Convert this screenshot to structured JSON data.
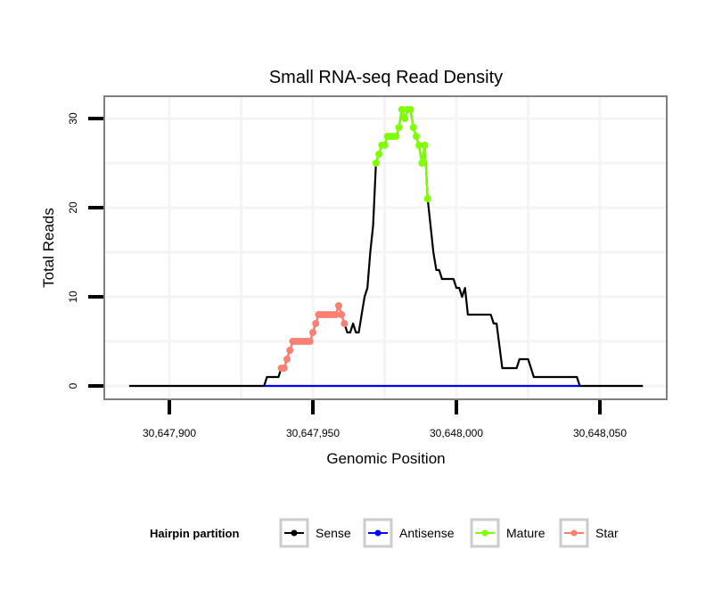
{
  "chart_data": {
    "type": "line",
    "title": "Small RNA-seq Read Density",
    "xlabel": "Genomic Position",
    "ylabel": "Total Reads",
    "xlim": [
      30647880,
      30648070
    ],
    "ylim": [
      -1.5,
      32.5
    ],
    "x_ticks": [
      30647900,
      30647950,
      30648000,
      30648050
    ],
    "x_tick_labels": [
      "30,647,900",
      "30,647,950",
      "30,648,000",
      "30,648,050"
    ],
    "y_ticks": [
      0,
      10,
      20,
      30
    ],
    "y_tick_labels": [
      "0",
      "10",
      "20",
      "30"
    ],
    "x_minor_grid": [
      30647925,
      30647975,
      30648025
    ],
    "y_minor_grid": [
      5,
      15,
      25
    ],
    "grid": true,
    "legend": {
      "title": "Hairpin partition",
      "position": "bottom",
      "entries": [
        {
          "name": "Sense",
          "color": "#000000"
        },
        {
          "name": "Antisense",
          "color": "#0000FF"
        },
        {
          "name": "Mature",
          "color": "#7FFF00"
        },
        {
          "name": "Star",
          "color": "#FA8072"
        }
      ]
    },
    "series": [
      {
        "name": "Sense",
        "color": "#000000",
        "style": "line",
        "x": [
          30647886,
          30647933,
          30647934,
          30647938,
          30647939,
          30647940,
          30647941,
          30647942,
          30647943,
          30647944,
          30647945,
          30647946,
          30647947,
          30647948,
          30647949,
          30647950,
          30647951,
          30647952,
          30647953,
          30647954,
          30647955,
          30647956,
          30647957,
          30647958,
          30647959,
          30647960,
          30647961,
          30647962,
          30647963,
          30647964,
          30647965,
          30647966,
          30647967,
          30647968,
          30647969,
          30647970,
          30647971,
          30647972,
          30647973,
          30647974,
          30647975,
          30647976,
          30647977,
          30647978,
          30647979,
          30647980,
          30647981,
          30647982,
          30647983,
          30647984,
          30647985,
          30647986,
          30647987,
          30647988,
          30647989,
          30647990,
          30647991,
          30647992,
          30647993,
          30647994,
          30647995,
          30647999,
          30648000,
          30648001,
          30648002,
          30648003,
          30648004,
          30648012,
          30648013,
          30648014,
          30648016,
          30648021,
          30648022,
          30648025,
          30648027,
          30648042,
          30648043,
          30648065
        ],
        "y": [
          0,
          0,
          1,
          1,
          2,
          2,
          3,
          4,
          5,
          5,
          5,
          5,
          5,
          5,
          5,
          6,
          7,
          8,
          8,
          8,
          8,
          8,
          8,
          8,
          9,
          8,
          7,
          6,
          6,
          7,
          6,
          6,
          8,
          10,
          11,
          15,
          18,
          25,
          26,
          27,
          27,
          28,
          28,
          28,
          28,
          29,
          31,
          30,
          31,
          31,
          29,
          28,
          27,
          25,
          27,
          21,
          18,
          15,
          13,
          13,
          12,
          12,
          11,
          11,
          10,
          11,
          8,
          8,
          7,
          7,
          2,
          2,
          3,
          3,
          1,
          1,
          0,
          0
        ]
      },
      {
        "name": "Antisense",
        "color": "#0000FF",
        "style": "line",
        "x": [
          30647933,
          30648043
        ],
        "y": [
          0,
          0
        ]
      },
      {
        "name": "Mature",
        "color": "#7FFF00",
        "style": "line+points",
        "x": [
          30647972,
          30647973,
          30647974,
          30647975,
          30647976,
          30647977,
          30647978,
          30647979,
          30647980,
          30647981,
          30647982,
          30647983,
          30647984,
          30647985,
          30647986,
          30647987,
          30647988,
          30647989,
          30647990
        ],
        "y": [
          25,
          26,
          27,
          27,
          28,
          28,
          28,
          28,
          29,
          31,
          30,
          31,
          31,
          29,
          28,
          27,
          25,
          27,
          21
        ]
      },
      {
        "name": "Star",
        "color": "#FA8072",
        "style": "line+points",
        "x": [
          30647939,
          30647940,
          30647941,
          30647942,
          30647943,
          30647944,
          30647945,
          30647946,
          30647947,
          30647948,
          30647949,
          30647950,
          30647951,
          30647952,
          30647953,
          30647954,
          30647955,
          30647956,
          30647957,
          30647958,
          30647959,
          30647960,
          30647961
        ],
        "y": [
          2,
          2,
          3,
          4,
          5,
          5,
          5,
          5,
          5,
          5,
          5,
          6,
          7,
          8,
          8,
          8,
          8,
          8,
          8,
          8,
          9,
          8,
          7
        ]
      }
    ]
  }
}
